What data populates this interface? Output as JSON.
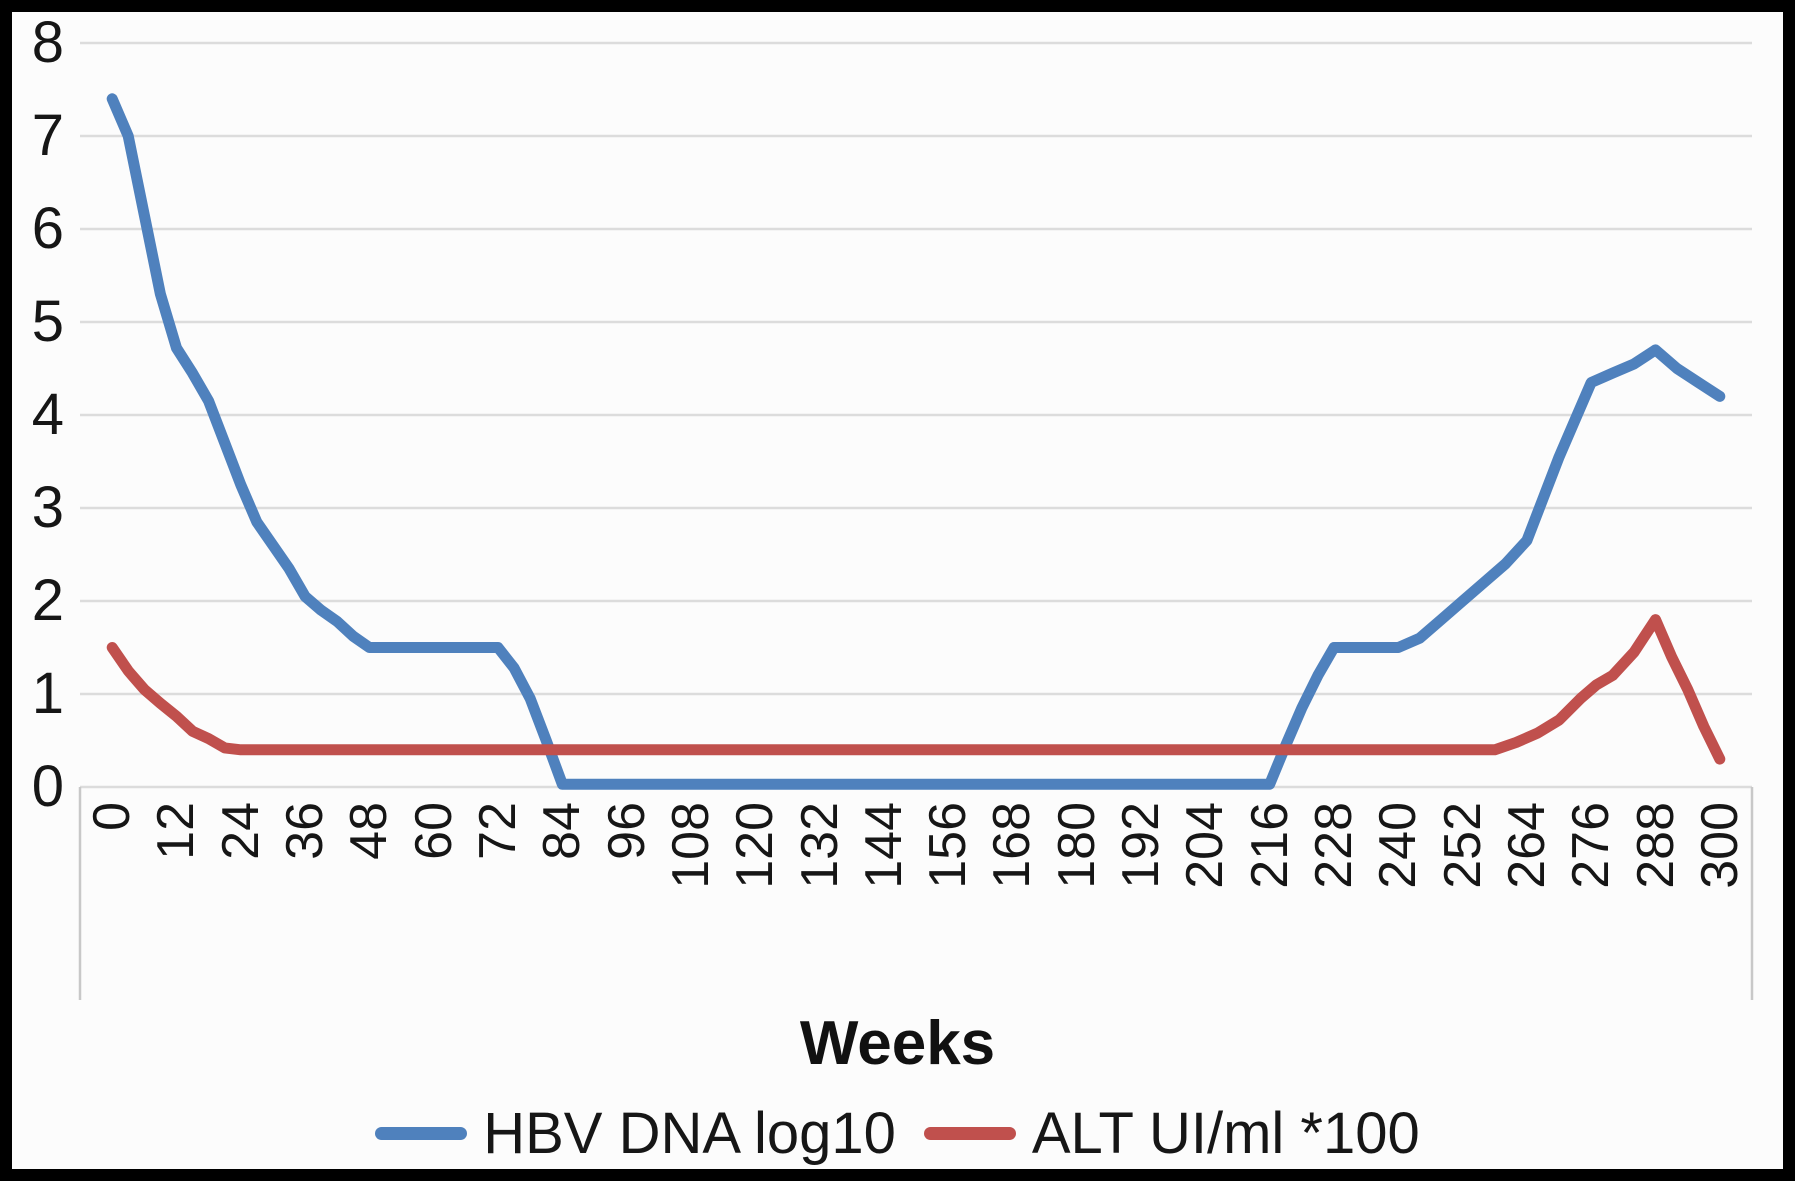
{
  "figure": {
    "background_color": "#000000",
    "chart_background_color": "#fcfcfc"
  },
  "chart_data": {
    "type": "line",
    "title": "",
    "xlabel": "Weeks",
    "ylabel": "",
    "grid": "horizontal",
    "gridline_color": "#dcdcdc",
    "axis_edge_color": "#c8c8c8",
    "text_color": "#161616",
    "legend_position": "bottom-center",
    "ylim": [
      0,
      8
    ],
    "y_ticks": [
      0,
      1,
      2,
      3,
      4,
      5,
      6,
      7,
      8
    ],
    "x_ticks": [
      "0",
      "12",
      "24",
      "36",
      "48",
      "60",
      "72",
      "84",
      "96",
      "108",
      "120",
      "132",
      "144",
      "156",
      "168",
      "180",
      "192",
      "204",
      "216",
      "228",
      "240",
      "252",
      "264",
      "276",
      "288",
      "300"
    ],
    "x_tick_step_weeks": 12,
    "x_tick_label_rotation_deg": -90,
    "series": [
      {
        "name": "HBV DNA log10",
        "color": "#4F81BD",
        "points": [
          [
            0,
            7.4
          ],
          [
            3,
            7.0
          ],
          [
            6,
            6.15
          ],
          [
            9,
            5.3
          ],
          [
            12,
            4.72
          ],
          [
            15,
            4.45
          ],
          [
            18,
            4.15
          ],
          [
            21,
            3.7
          ],
          [
            24,
            3.25
          ],
          [
            27,
            2.85
          ],
          [
            30,
            2.6
          ],
          [
            33,
            2.35
          ],
          [
            36,
            2.05
          ],
          [
            39,
            1.9
          ],
          [
            42,
            1.78
          ],
          [
            45,
            1.62
          ],
          [
            48,
            1.5
          ],
          [
            54,
            1.5
          ],
          [
            60,
            1.5
          ],
          [
            66,
            1.5
          ],
          [
            72,
            1.5
          ],
          [
            75,
            1.28
          ],
          [
            78,
            0.95
          ],
          [
            81,
            0.5
          ],
          [
            84,
            0.03
          ],
          [
            90,
            0.03
          ],
          [
            96,
            0.03
          ],
          [
            108,
            0.03
          ],
          [
            120,
            0.03
          ],
          [
            132,
            0.03
          ],
          [
            144,
            0.03
          ],
          [
            156,
            0.03
          ],
          [
            168,
            0.03
          ],
          [
            180,
            0.03
          ],
          [
            192,
            0.03
          ],
          [
            204,
            0.03
          ],
          [
            210,
            0.03
          ],
          [
            216,
            0.03
          ],
          [
            219,
            0.45
          ],
          [
            222,
            0.85
          ],
          [
            225,
            1.2
          ],
          [
            228,
            1.5
          ],
          [
            234,
            1.5
          ],
          [
            240,
            1.5
          ],
          [
            244,
            1.6
          ],
          [
            248,
            1.8
          ],
          [
            252,
            2.0
          ],
          [
            256,
            2.2
          ],
          [
            260,
            2.4
          ],
          [
            264,
            2.65
          ],
          [
            267,
            3.1
          ],
          [
            270,
            3.55
          ],
          [
            273,
            3.95
          ],
          [
            276,
            4.35
          ],
          [
            280,
            4.45
          ],
          [
            284,
            4.55
          ],
          [
            288,
            4.7
          ],
          [
            292,
            4.5
          ],
          [
            296,
            4.35
          ],
          [
            300,
            4.2
          ]
        ]
      },
      {
        "name": "ALT UI/ml *100",
        "color": "#C0504D",
        "points": [
          [
            0,
            1.5
          ],
          [
            3,
            1.25
          ],
          [
            6,
            1.05
          ],
          [
            9,
            0.9
          ],
          [
            12,
            0.76
          ],
          [
            15,
            0.6
          ],
          [
            18,
            0.52
          ],
          [
            21,
            0.42
          ],
          [
            24,
            0.4
          ],
          [
            36,
            0.4
          ],
          [
            48,
            0.4
          ],
          [
            60,
            0.4
          ],
          [
            72,
            0.4
          ],
          [
            84,
            0.4
          ],
          [
            96,
            0.4
          ],
          [
            108,
            0.4
          ],
          [
            120,
            0.4
          ],
          [
            132,
            0.4
          ],
          [
            144,
            0.4
          ],
          [
            156,
            0.4
          ],
          [
            168,
            0.4
          ],
          [
            180,
            0.4
          ],
          [
            192,
            0.4
          ],
          [
            204,
            0.4
          ],
          [
            216,
            0.4
          ],
          [
            228,
            0.4
          ],
          [
            240,
            0.4
          ],
          [
            252,
            0.4
          ],
          [
            258,
            0.4
          ],
          [
            262,
            0.48
          ],
          [
            266,
            0.58
          ],
          [
            270,
            0.72
          ],
          [
            274,
            0.95
          ],
          [
            277,
            1.1
          ],
          [
            280,
            1.2
          ],
          [
            284,
            1.45
          ],
          [
            288,
            1.8
          ],
          [
            291,
            1.4
          ],
          [
            294,
            1.05
          ],
          [
            297,
            0.65
          ],
          [
            300,
            0.3
          ]
        ]
      }
    ]
  }
}
